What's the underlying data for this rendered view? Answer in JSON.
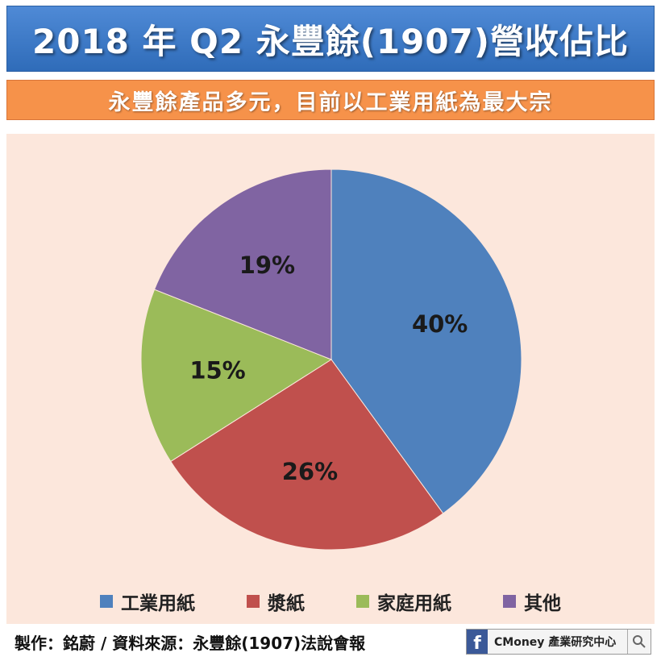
{
  "header": {
    "title": "2018 年 Q2 永豐餘(1907)營收佔比",
    "subtitle": "永豐餘產品多元，目前以工業用紙為最大宗"
  },
  "colors": {
    "title_bg": "#3d78c4",
    "subtitle_bg": "#f6924a",
    "chart_bg": "#fce7dc"
  },
  "chart_data": {
    "type": "pie",
    "categories": [
      "工業用紙",
      "漿紙",
      "家庭用紙",
      "其他"
    ],
    "values": [
      40,
      26,
      15,
      19
    ],
    "labels": [
      "40%",
      "26%",
      "15%",
      "19%"
    ],
    "colors": [
      "#4f81bd",
      "#c0504d",
      "#9bbb59",
      "#8064a2"
    ],
    "legend": "bottom"
  },
  "footer": {
    "credit": "製作：銘蔚 / 資料來源：永豐餘(1907)法說會報",
    "badge_fb": "f",
    "badge_text": "CMoney 產業研究中心",
    "search_icon": "search-icon"
  }
}
